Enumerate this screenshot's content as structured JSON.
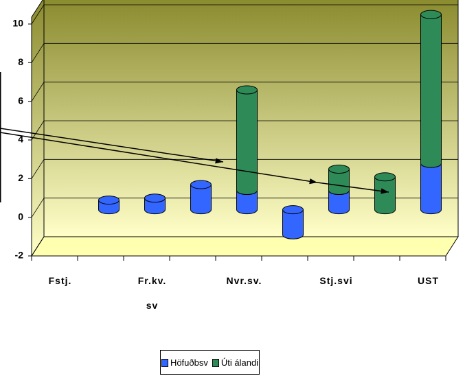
{
  "chart_data": {
    "type": "bar",
    "categories": [
      "Fstj.",
      null,
      "Fr.kv. sv",
      null,
      "Nvr.sv.",
      null,
      "Stj.svi",
      null,
      "UST"
    ],
    "series": [
      {
        "name": "Höfuðbsv",
        "color": "#3366ff",
        "values": [
          null,
          0.5,
          0.6,
          1.3,
          1.0,
          -1.3,
          1.0,
          null,
          2.4
        ]
      },
      {
        "name": "Úti álandi",
        "color": "#2e8b57",
        "values": [
          null,
          null,
          null,
          null,
          5.2,
          null,
          1.1,
          1.7,
          7.7
        ]
      }
    ],
    "stacked": true,
    "ylim": [
      -2,
      10
    ],
    "yticks": [
      -2,
      0,
      2,
      4,
      6,
      8,
      10
    ],
    "grid": true
  }
}
